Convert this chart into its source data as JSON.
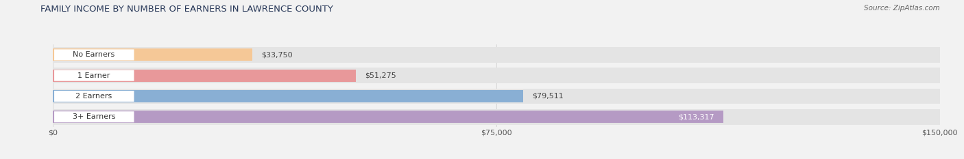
{
  "title": "FAMILY INCOME BY NUMBER OF EARNERS IN LAWRENCE COUNTY",
  "source": "Source: ZipAtlas.com",
  "categories": [
    "No Earners",
    "1 Earner",
    "2 Earners",
    "3+ Earners"
  ],
  "values": [
    33750,
    51275,
    79511,
    113317
  ],
  "bar_colors": [
    "#f5c897",
    "#e8989a",
    "#89afd4",
    "#b59ac4"
  ],
  "value_label_colors": [
    "#444444",
    "#444444",
    "#444444",
    "#ffffff"
  ],
  "value_labels": [
    "$33,750",
    "$51,275",
    "$79,511",
    "$113,317"
  ],
  "xlim": [
    0,
    150000
  ],
  "xticks": [
    0,
    75000,
    150000
  ],
  "xtick_labels": [
    "$0",
    "$75,000",
    "$150,000"
  ],
  "background_color": "#f2f2f2",
  "bar_bg_color": "#e4e4e4",
  "title_fontsize": 9.5,
  "source_fontsize": 7.5,
  "bar_label_fontsize": 8,
  "value_label_fontsize": 8,
  "tick_fontsize": 8
}
